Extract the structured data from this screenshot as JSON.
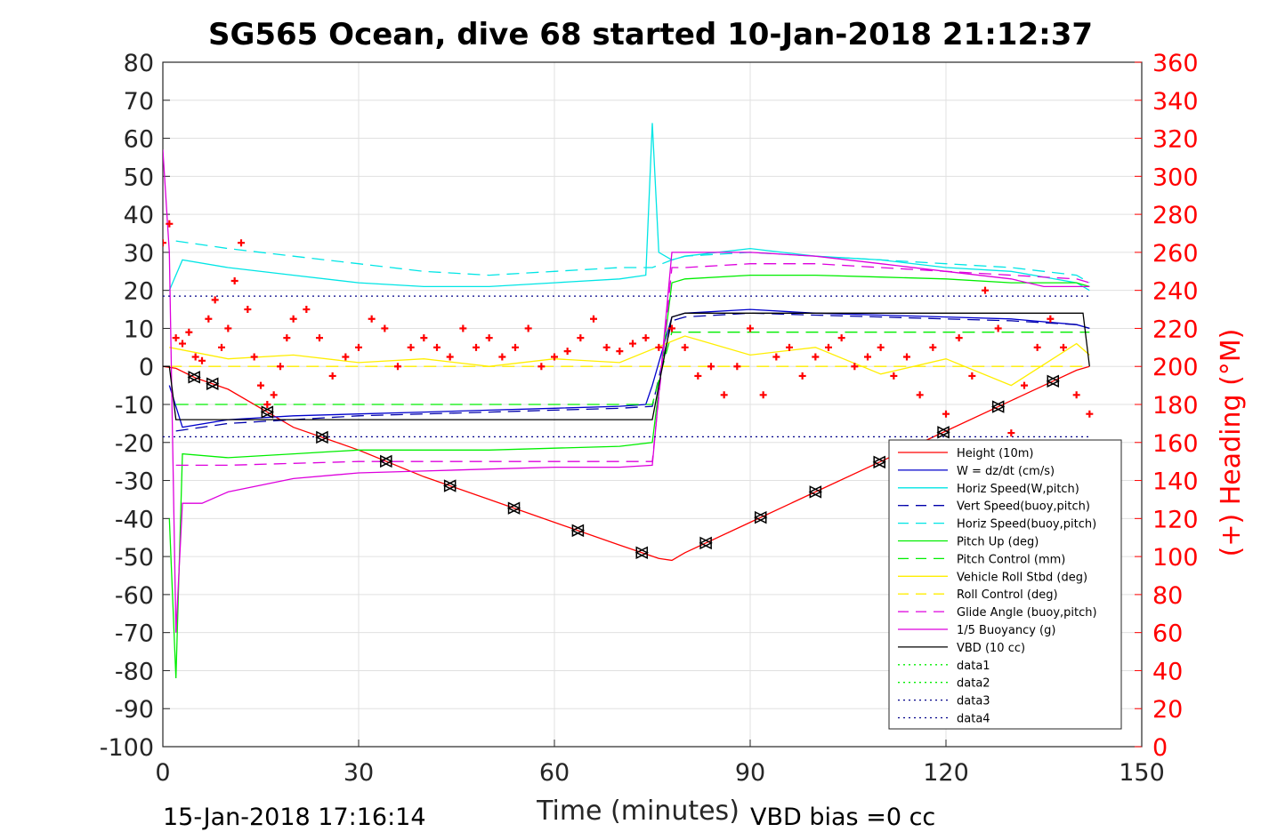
{
  "chart_data": {
    "type": "line",
    "title": "SG565 Ocean, dive 68 started 10-Jan-2018 21:12:37",
    "xlabel": "Time (minutes)",
    "ylabel_right": "(+) Heading (°M)",
    "xlim": [
      0,
      150
    ],
    "ylim_left": [
      -100,
      80
    ],
    "ylim_right": [
      0,
      360
    ],
    "xticks": [
      "0",
      "30",
      "60",
      "90",
      "120",
      "150"
    ],
    "yticks_left": [
      "80",
      "70",
      "60",
      "50",
      "40",
      "30",
      "20",
      "10",
      "0",
      "-10",
      "-20",
      "-30",
      "-40",
      "-50",
      "-60",
      "-70",
      "-80",
      "-90",
      "-100"
    ],
    "yticks_right": [
      "360",
      "340",
      "320",
      "300",
      "280",
      "260",
      "240",
      "220",
      "200",
      "180",
      "160",
      "140",
      "120",
      "100",
      "80",
      "60",
      "40",
      "20",
      "0"
    ],
    "grid": true,
    "legend_position": "lower-right",
    "footer_left": "15-Jan-2018 17:16:14",
    "footer_right": "VBD bias =0 cc",
    "series": [
      {
        "name": "Height (10m)",
        "color": "#ff0000",
        "style": "solid",
        "x": [
          0,
          2,
          5,
          10,
          20,
          30,
          40,
          50,
          60,
          70,
          76,
          78,
          80,
          90,
          100,
          110,
          120,
          130,
          140,
          142
        ],
        "y": [
          0,
          -0.5,
          -3,
          -6,
          -16,
          -22,
          -29,
          -35,
          -41,
          -47,
          -50.5,
          -51,
          -49,
          -41,
          -33,
          -25,
          -17,
          -9,
          -1,
          0
        ]
      },
      {
        "name": "W = dz/dt (cm/s)",
        "color": "#0000cc",
        "style": "solid",
        "x": [
          1,
          3,
          10,
          20,
          30,
          40,
          50,
          60,
          70,
          74,
          75,
          78,
          80,
          90,
          100,
          110,
          120,
          130,
          140,
          142
        ],
        "y": [
          -5,
          -16,
          -14,
          -13,
          -12.5,
          -12,
          -11.5,
          -11,
          -10.5,
          -10,
          -5,
          13,
          14,
          15,
          14,
          13.5,
          13,
          12.5,
          11,
          10
        ]
      },
      {
        "name": "Horiz Speed(W,pitch)",
        "color": "#00e5e5",
        "style": "solid",
        "x": [
          1,
          3,
          10,
          20,
          30,
          40,
          50,
          60,
          70,
          74,
          75,
          76,
          78,
          80,
          90,
          100,
          110,
          120,
          130,
          140,
          142
        ],
        "y": [
          20,
          28,
          26,
          24,
          22,
          21,
          21,
          22,
          23,
          24,
          64,
          30,
          28,
          29,
          31,
          29,
          28,
          26,
          25,
          22,
          20
        ]
      },
      {
        "name": "Vert Speed(buoy,pitch)",
        "color": "#0000aa",
        "style": "dashed",
        "x": [
          2,
          10,
          20,
          30,
          40,
          50,
          60,
          70,
          75,
          78,
          80,
          90,
          100,
          110,
          120,
          130,
          140,
          142
        ],
        "y": [
          -17,
          -15,
          -14,
          -13,
          -12.5,
          -12,
          -11.5,
          -11,
          -10.5,
          12,
          13,
          14,
          13.5,
          13,
          12.5,
          12,
          11,
          10
        ]
      },
      {
        "name": "Horiz Speed(buoy,pitch)",
        "color": "#00e5e5",
        "style": "dashed",
        "x": [
          2,
          10,
          20,
          30,
          40,
          50,
          60,
          70,
          75,
          78,
          80,
          90,
          100,
          110,
          120,
          130,
          140,
          142
        ],
        "y": [
          33,
          31,
          29,
          27,
          25,
          24,
          25,
          26,
          26,
          28,
          29,
          30,
          29,
          28,
          27,
          26,
          24,
          22
        ]
      },
      {
        "name": "Pitch Up (deg)",
        "color": "#00ee00",
        "style": "solid",
        "x": [
          1,
          2,
          3,
          10,
          20,
          30,
          40,
          50,
          60,
          70,
          75,
          78,
          80,
          90,
          100,
          110,
          120,
          130,
          140,
          142
        ],
        "y": [
          -40,
          -82,
          -23,
          -24,
          -23,
          -22,
          -22,
          -22,
          -21.5,
          -21,
          -20,
          22,
          23,
          24,
          24,
          23.5,
          23,
          22,
          22,
          21
        ]
      },
      {
        "name": "Pitch Control (mm)",
        "color": "#00ee00",
        "style": "dashed",
        "x": [
          2,
          10,
          30,
          50,
          70,
          75,
          78,
          142
        ],
        "y": [
          -10,
          -10,
          -10,
          -10,
          -10,
          -10,
          9,
          9
        ]
      },
      {
        "name": "Vehicle Roll Stbd (deg)",
        "color": "#ffee00",
        "style": "solid",
        "x": [
          1,
          10,
          20,
          30,
          40,
          50,
          60,
          70,
          80,
          90,
          100,
          110,
          120,
          130,
          140,
          142
        ],
        "y": [
          5,
          2,
          3,
          1,
          2,
          0,
          2,
          1,
          8,
          3,
          5,
          -2,
          2,
          -5,
          6,
          3
        ]
      },
      {
        "name": "Roll Control (deg)",
        "color": "#ffee00",
        "style": "dashed",
        "x": [
          1,
          142
        ],
        "y": [
          0,
          0
        ]
      },
      {
        "name": "Glide Angle (buoy,pitch)",
        "color": "#dd00dd",
        "style": "dashed",
        "x": [
          2,
          10,
          20,
          30,
          40,
          50,
          60,
          70,
          75,
          78,
          80,
          90,
          100,
          110,
          120,
          130,
          140,
          142
        ],
        "y": [
          -26,
          -26,
          -25.5,
          -25,
          -25,
          -25,
          -25,
          -25,
          -25,
          26,
          26,
          27,
          27,
          26,
          25,
          24,
          23,
          22
        ]
      },
      {
        "name": "1/5 Buoyancy (g)",
        "color": "#dd00dd",
        "style": "solid",
        "x": [
          0,
          1,
          2,
          3,
          6,
          10,
          20,
          30,
          40,
          50,
          60,
          70,
          75,
          78,
          80,
          90,
          100,
          110,
          120,
          130,
          135,
          142
        ],
        "y": [
          57,
          30,
          -70,
          -36,
          -36,
          -33,
          -29.5,
          -28,
          -27.5,
          -27,
          -26.5,
          -26.5,
          -26,
          30,
          30,
          30,
          29,
          27,
          25,
          23,
          21,
          21
        ]
      },
      {
        "name": "VBD (10 cc)",
        "color": "#000000",
        "style": "solid",
        "x": [
          0,
          1,
          2,
          75,
          78,
          80,
          141,
          142
        ],
        "y": [
          0,
          0,
          -14,
          -14,
          13,
          14,
          14,
          0
        ]
      },
      {
        "name": "data1",
        "color": "#00ee00",
        "style": "dotted",
        "x": [],
        "y": []
      },
      {
        "name": "data2",
        "color": "#00ee00",
        "style": "dotted",
        "x": [],
        "y": []
      },
      {
        "name": "data3",
        "color": "#000088",
        "style": "dotted",
        "x": [
          0,
          142
        ],
        "y": [
          18.5,
          18.5
        ]
      },
      {
        "name": "data4",
        "color": "#000088",
        "style": "dotted",
        "x": [
          0,
          142
        ],
        "y": [
          -18.5,
          -18.5
        ]
      }
    ],
    "heading": {
      "color": "#ff0000",
      "marker": "+",
      "axis": "right",
      "x": [
        0,
        1,
        2,
        3,
        4,
        5,
        6,
        7,
        8,
        9,
        10,
        11,
        12,
        13,
        14,
        15,
        16,
        17,
        18,
        19,
        20,
        22,
        24,
        26,
        28,
        30,
        32,
        34,
        36,
        38,
        40,
        42,
        44,
        46,
        48,
        50,
        52,
        54,
        56,
        58,
        60,
        62,
        64,
        66,
        68,
        70,
        72,
        74,
        76,
        78,
        80,
        82,
        84,
        86,
        88,
        90,
        92,
        94,
        96,
        98,
        100,
        102,
        104,
        106,
        108,
        110,
        112,
        114,
        116,
        118,
        120,
        122,
        124,
        126,
        128,
        130,
        132,
        134,
        136,
        138,
        140,
        142
      ],
      "y": [
        265,
        275,
        215,
        212,
        218,
        205,
        203,
        225,
        235,
        210,
        220,
        245,
        265,
        230,
        205,
        190,
        180,
        185,
        200,
        215,
        225,
        230,
        215,
        195,
        205,
        210,
        225,
        220,
        200,
        210,
        215,
        210,
        205,
        220,
        210,
        215,
        205,
        210,
        220,
        200,
        205,
        208,
        215,
        225,
        210,
        208,
        212,
        215,
        210,
        220,
        210,
        195,
        200,
        185,
        200,
        220,
        185,
        205,
        210,
        195,
        205,
        210,
        215,
        200,
        205,
        210,
        195,
        205,
        185,
        210,
        175,
        215,
        195,
        240,
        220,
        165,
        190,
        210,
        225,
        210,
        185,
        175
      ]
    },
    "depth_markers": {
      "up": [
        0.02,
        0.04,
        0.1,
        0.16,
        0.23,
        0.3,
        0.37,
        0.44,
        0.51,
        0.58,
        0.64,
        0.7,
        0.77,
        0.84,
        0.9,
        0.96
      ]
    }
  }
}
